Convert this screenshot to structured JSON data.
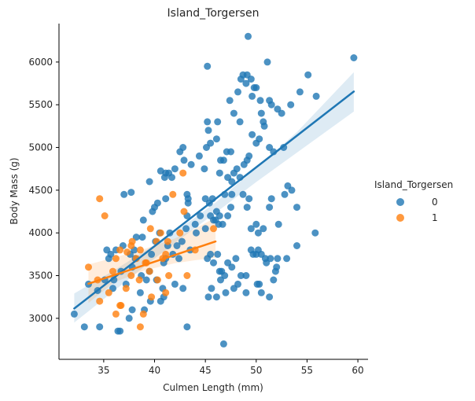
{
  "chart_data": {
    "type": "scatter",
    "title": "Island_Torgersen",
    "xlabel": "Culmen Length (mm)",
    "ylabel": "Body Mass (g)",
    "xlim": [
      30.6,
      61.0
    ],
    "ylim": [
      2520,
      6450
    ],
    "xticks": [
      35,
      40,
      45,
      50,
      55,
      60
    ],
    "yticks": [
      3000,
      3500,
      4000,
      4500,
      5000,
      5500,
      6000
    ],
    "grid": false,
    "legend": {
      "title": "Island_Torgersen",
      "placement": "right-outside"
    },
    "series": [
      {
        "name": "0",
        "color": "#1f77b4",
        "regression": {
          "x": [
            32.1,
            59.6
          ],
          "y": [
            3115,
            5655
          ]
        },
        "ci_band": {
          "x": [
            32.1,
            36,
            40,
            44,
            46,
            50,
            54,
            59.6
          ],
          "upper": [
            3290,
            3560,
            3860,
            4180,
            4355,
            4760,
            5180,
            5880
          ],
          "lower": [
            2950,
            3320,
            3700,
            4060,
            4235,
            4595,
            4940,
            5420
          ]
        },
        "points": [
          [
            32.1,
            3050
          ],
          [
            33.1,
            2900
          ],
          [
            34.6,
            2900
          ],
          [
            36.4,
            2850
          ],
          [
            36.6,
            2850
          ],
          [
            37.5,
            3000
          ],
          [
            37.8,
            3100
          ],
          [
            38.6,
            3300
          ],
          [
            39,
            3100
          ],
          [
            39.6,
            3200
          ],
          [
            40.6,
            3200
          ],
          [
            40.9,
            3250
          ],
          [
            42.8,
            3350
          ],
          [
            43.2,
            2900
          ],
          [
            33.5,
            3400
          ],
          [
            34.4,
            3325
          ],
          [
            35.1,
            3450
          ],
          [
            35.5,
            3700
          ],
          [
            35.9,
            3350
          ],
          [
            36,
            3450
          ],
          [
            36.7,
            3550
          ],
          [
            37.2,
            3400
          ],
          [
            37.8,
            3600
          ],
          [
            38.1,
            3700
          ],
          [
            38.7,
            3500
          ],
          [
            39.2,
            3450
          ],
          [
            39.5,
            3550
          ],
          [
            40.2,
            3450
          ],
          [
            40.8,
            3350
          ],
          [
            41.1,
            3700
          ],
          [
            42,
            3400
          ],
          [
            42.4,
            3700
          ],
          [
            43.5,
            3800
          ],
          [
            35.3,
            3800
          ],
          [
            35.7,
            3750
          ],
          [
            36.2,
            3800
          ],
          [
            36.9,
            3850
          ],
          [
            37.6,
            3750
          ],
          [
            38,
            3800
          ],
          [
            38.2,
            3950
          ],
          [
            38.8,
            3950
          ],
          [
            39.7,
            3750
          ],
          [
            40.1,
            3900
          ],
          [
            40.5,
            4000
          ],
          [
            40.9,
            3650
          ],
          [
            41.3,
            3850
          ],
          [
            41.5,
            4000
          ],
          [
            41.8,
            3750
          ],
          [
            42.2,
            3850
          ],
          [
            42.7,
            3900
          ],
          [
            43.1,
            4050
          ],
          [
            44.1,
            4000
          ],
          [
            37,
            4450
          ],
          [
            37.7,
            4475
          ],
          [
            38.9,
            4150
          ],
          [
            39.5,
            4600
          ],
          [
            39.8,
            4250
          ],
          [
            40,
            4300
          ],
          [
            40.3,
            4350
          ],
          [
            40.6,
            4725
          ],
          [
            41,
            4650
          ],
          [
            41.1,
            4400
          ],
          [
            41.4,
            4700
          ],
          [
            41.7,
            4650
          ],
          [
            42,
            4750
          ],
          [
            42.5,
            4950
          ],
          [
            42.8,
            5000
          ],
          [
            43.2,
            4450
          ],
          [
            43.3,
            4400
          ],
          [
            43.6,
            4800
          ],
          [
            44.4,
            4900
          ],
          [
            44.9,
            4750
          ],
          [
            45.1,
            5000
          ],
          [
            45.2,
            5300
          ],
          [
            45.3,
            5200
          ],
          [
            45.5,
            5050
          ],
          [
            45.7,
            4400
          ],
          [
            46.1,
            5100
          ],
          [
            46.2,
            5300
          ],
          [
            45.2,
            5950
          ],
          [
            46.8,
            4850
          ],
          [
            47.2,
            4650
          ],
          [
            47.4,
            5550
          ],
          [
            47.8,
            5400
          ],
          [
            48.2,
            5650
          ],
          [
            48.4,
            5300
          ],
          [
            48.5,
            5800
          ],
          [
            48.7,
            5850
          ],
          [
            49,
            5750
          ],
          [
            49.1,
            5850
          ],
          [
            49.2,
            6300
          ],
          [
            49.5,
            5800
          ],
          [
            49.6,
            5600
          ],
          [
            49.8,
            5700
          ],
          [
            50,
            5700
          ],
          [
            50.4,
            5550
          ],
          [
            50.5,
            5400
          ],
          [
            50.7,
            5300
          ],
          [
            51.1,
            6000
          ],
          [
            51.3,
            5550
          ],
          [
            51.5,
            5500
          ],
          [
            52.1,
            5450
          ],
          [
            52.5,
            5400
          ],
          [
            53.4,
            5500
          ],
          [
            54.3,
            5650
          ],
          [
            55.1,
            5850
          ],
          [
            55.9,
            5600
          ],
          [
            59.6,
            6050
          ],
          [
            46.4,
            4700
          ],
          [
            46.5,
            4850
          ],
          [
            47.1,
            4950
          ],
          [
            47.5,
            4950
          ],
          [
            47.6,
            4600
          ],
          [
            47.8,
            4700
          ],
          [
            48.1,
            4750
          ],
          [
            48.4,
            4650
          ],
          [
            48.8,
            4800
          ],
          [
            49.1,
            4850
          ],
          [
            49.3,
            4900
          ],
          [
            49.6,
            5150
          ],
          [
            50,
            5050
          ],
          [
            50.3,
            5100
          ],
          [
            50.8,
            5250
          ],
          [
            51.3,
            5000
          ],
          [
            51.7,
            4950
          ],
          [
            52.7,
            5000
          ],
          [
            53.1,
            4550
          ],
          [
            53.5,
            4500
          ],
          [
            54,
            4300
          ],
          [
            55.8,
            4000
          ],
          [
            46,
            4150
          ],
          [
            46.4,
            4200
          ],
          [
            46.7,
            4100
          ],
          [
            46.9,
            4450
          ],
          [
            47.2,
            4200
          ],
          [
            47.5,
            4300
          ],
          [
            47.6,
            4450
          ],
          [
            48.7,
            4450
          ],
          [
            49.1,
            4300
          ],
          [
            49.3,
            4400
          ],
          [
            49.5,
            4050
          ],
          [
            50,
            4100
          ],
          [
            50.2,
            4000
          ],
          [
            50.7,
            4050
          ],
          [
            51.3,
            4300
          ],
          [
            51.5,
            4400
          ],
          [
            52.2,
            4100
          ],
          [
            52.8,
            4450
          ],
          [
            45,
            4400
          ],
          [
            45.4,
            4350
          ],
          [
            45.5,
            4200
          ],
          [
            45.8,
            4150
          ],
          [
            46.1,
            4250
          ],
          [
            46.3,
            4100
          ],
          [
            45.2,
            3700
          ],
          [
            45.5,
            3750
          ],
          [
            45.8,
            3650
          ],
          [
            46.2,
            3750
          ],
          [
            46.4,
            3550
          ],
          [
            46.6,
            3550
          ],
          [
            46.9,
            3500
          ],
          [
            47.2,
            3650
          ],
          [
            47.6,
            3600
          ],
          [
            48,
            3700
          ],
          [
            48.5,
            3500
          ],
          [
            49,
            3500
          ],
          [
            49.5,
            3800
          ],
          [
            49.7,
            3750
          ],
          [
            50,
            3750
          ],
          [
            50.2,
            3800
          ],
          [
            50.5,
            3750
          ],
          [
            50.9,
            3700
          ],
          [
            51,
            3650
          ],
          [
            51.4,
            3700
          ],
          [
            51.9,
            3550
          ],
          [
            52,
            3600
          ],
          [
            53,
            3700
          ],
          [
            45.3,
            3250
          ],
          [
            45.6,
            3350
          ],
          [
            46.1,
            3250
          ],
          [
            46.5,
            3450
          ],
          [
            47,
            3300
          ],
          [
            47.8,
            3350
          ],
          [
            48.2,
            3400
          ],
          [
            49,
            3300
          ],
          [
            50.1,
            3400
          ],
          [
            50.5,
            3300
          ],
          [
            51.3,
            3250
          ],
          [
            51.7,
            3450
          ],
          [
            46.8,
            2700
          ],
          [
            52.1,
            3700
          ],
          [
            54,
            3850
          ],
          [
            50.3,
            3400
          ],
          [
            43.3,
            4350
          ],
          [
            43.2,
            4200
          ],
          [
            44,
            4100
          ],
          [
            44.5,
            4200
          ],
          [
            45,
            4050
          ],
          [
            41.1,
            4700
          ],
          [
            42.9,
            4850
          ]
        ]
      },
      {
        "name": "1",
        "color": "#ff7f0e",
        "regression": {
          "x": [
            33.5,
            46.0
          ],
          "y": [
            3405,
            3900
          ]
        },
        "ci_band": {
          "x": [
            33.5,
            36,
            39,
            42,
            44,
            46
          ],
          "upper": [
            3630,
            3710,
            3810,
            3935,
            4050,
            4180
          ],
          "lower": [
            3180,
            3420,
            3560,
            3645,
            3680,
            3710
          ]
        },
        "points": [
          [
            34.6,
            4400
          ],
          [
            35.1,
            4200
          ],
          [
            33.5,
            3600
          ],
          [
            34.4,
            3450
          ],
          [
            34.6,
            3200
          ],
          [
            35.5,
            3300
          ],
          [
            35.9,
            3550
          ],
          [
            36.2,
            3050
          ],
          [
            36.6,
            3150
          ],
          [
            36.7,
            3150
          ],
          [
            36.2,
            3700
          ],
          [
            36.6,
            3800
          ],
          [
            37.3,
            3775
          ],
          [
            37.7,
            3500
          ],
          [
            37.8,
            3900
          ],
          [
            37.7,
            3850
          ],
          [
            38.6,
            3800
          ],
          [
            39.1,
            3650
          ],
          [
            39.2,
            3650
          ],
          [
            39.5,
            3550
          ],
          [
            39.7,
            3250
          ],
          [
            38.5,
            3450
          ],
          [
            38.6,
            2900
          ],
          [
            38.9,
            3050
          ],
          [
            40.2,
            3900
          ],
          [
            40.3,
            3450
          ],
          [
            40.6,
            4000
          ],
          [
            40.8,
            3700
          ],
          [
            41.1,
            3300
          ],
          [
            41.4,
            3500
          ],
          [
            41.8,
            4450
          ],
          [
            42.5,
            4000
          ],
          [
            42.9,
            4250
          ],
          [
            43.2,
            3500
          ],
          [
            44,
            3800
          ],
          [
            45.8,
            4050
          ],
          [
            37.2,
            3350
          ],
          [
            42.8,
            4700
          ],
          [
            39.6,
            4050
          ],
          [
            41.3,
            3900
          ],
          [
            41.1,
            3750
          ],
          [
            38.2,
            3700
          ]
        ]
      }
    ]
  }
}
